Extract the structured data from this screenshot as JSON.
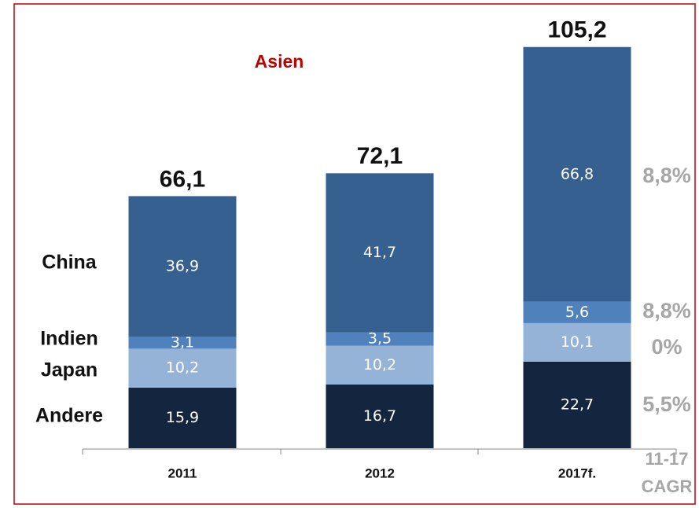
{
  "chart_data": {
    "type": "stacked_bar",
    "title": "Asien",
    "categories": [
      "2011",
      "2012",
      "2017f."
    ],
    "series": [
      {
        "name": "Andere",
        "color": "#14253f",
        "values": [
          15.9,
          16.7,
          22.7
        ],
        "value_labels": [
          "15,9",
          "16,7",
          "22,7"
        ],
        "cagr": 5.5,
        "cagr_label": "5,5%"
      },
      {
        "name": "Japan",
        "color": "#95b3d7",
        "values": [
          10.2,
          10.2,
          10.1
        ],
        "value_labels": [
          "10,2",
          "10,2",
          "10,1"
        ],
        "cagr": 0,
        "cagr_label": "0%"
      },
      {
        "name": "Indien",
        "color": "#4f81bd",
        "values": [
          3.1,
          3.5,
          5.6
        ],
        "value_labels": [
          "3,1",
          "3,5",
          "5,6"
        ],
        "cagr": 8.8,
        "cagr_label": "8,8%"
      },
      {
        "name": "China",
        "color": "#36608f",
        "values": [
          36.9,
          41.7,
          66.8
        ],
        "value_labels": [
          "36,9",
          "41,7",
          "66,8"
        ],
        "cagr": 8.8,
        "cagr_label": "8,8%"
      }
    ],
    "totals": [
      66.1,
      72.1,
      105.2
    ],
    "total_labels": [
      "66,1",
      "72,1",
      "105,2"
    ],
    "cagr_header": [
      "11-17",
      "CAGR"
    ]
  }
}
